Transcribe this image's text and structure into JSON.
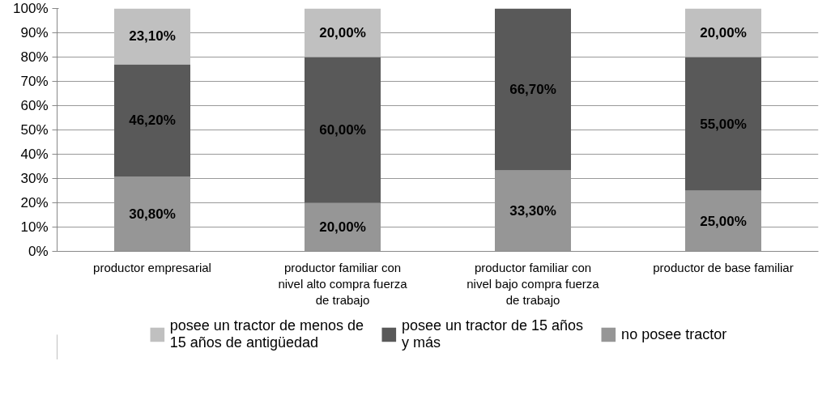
{
  "chart_data": {
    "type": "bar",
    "stacked": true,
    "categories": [
      "productor empresarial",
      "productor familiar con nivel alto compra fuerza de trabajo",
      "productor familiar con nivel bajo compra fuerza de trabajo",
      "productor de base familiar"
    ],
    "series": [
      {
        "name": "no posee tractor",
        "color": "#969696",
        "values": [
          30.8,
          20,
          33.3,
          25
        ],
        "value_labels": [
          "30,80%",
          "20,00%",
          "33,30%",
          "25,00%"
        ]
      },
      {
        "name": "posee un tractor de 15 años y más",
        "color": "#595959",
        "values": [
          46.2,
          60,
          66.7,
          55
        ],
        "value_labels": [
          "46,20%",
          "60,00%",
          "66,70%",
          "55,00%"
        ]
      },
      {
        "name": "posee un tractor de menos de 15 años de antigüedad",
        "color": "#c0c0c0",
        "values": [
          23.1,
          20,
          null,
          20
        ],
        "value_labels": [
          "23,10%",
          "20,00%",
          null,
          "20,00%"
        ]
      }
    ],
    "ylim": [
      0,
      100
    ],
    "yticks": [
      {
        "value": 0,
        "label": "0%"
      },
      {
        "value": 10,
        "label": "10%"
      },
      {
        "value": 20,
        "label": "20%"
      },
      {
        "value": 30,
        "label": "30%"
      },
      {
        "value": 40,
        "label": "40%"
      },
      {
        "value": 50,
        "label": "50%"
      },
      {
        "value": 60,
        "label": "60%"
      },
      {
        "value": 70,
        "label": "70%"
      },
      {
        "value": 80,
        "label": "80%"
      },
      {
        "value": 90,
        "label": "90%"
      },
      {
        "value": 100,
        "label": "100%"
      }
    ],
    "grid": "y",
    "legend": "bottom"
  }
}
